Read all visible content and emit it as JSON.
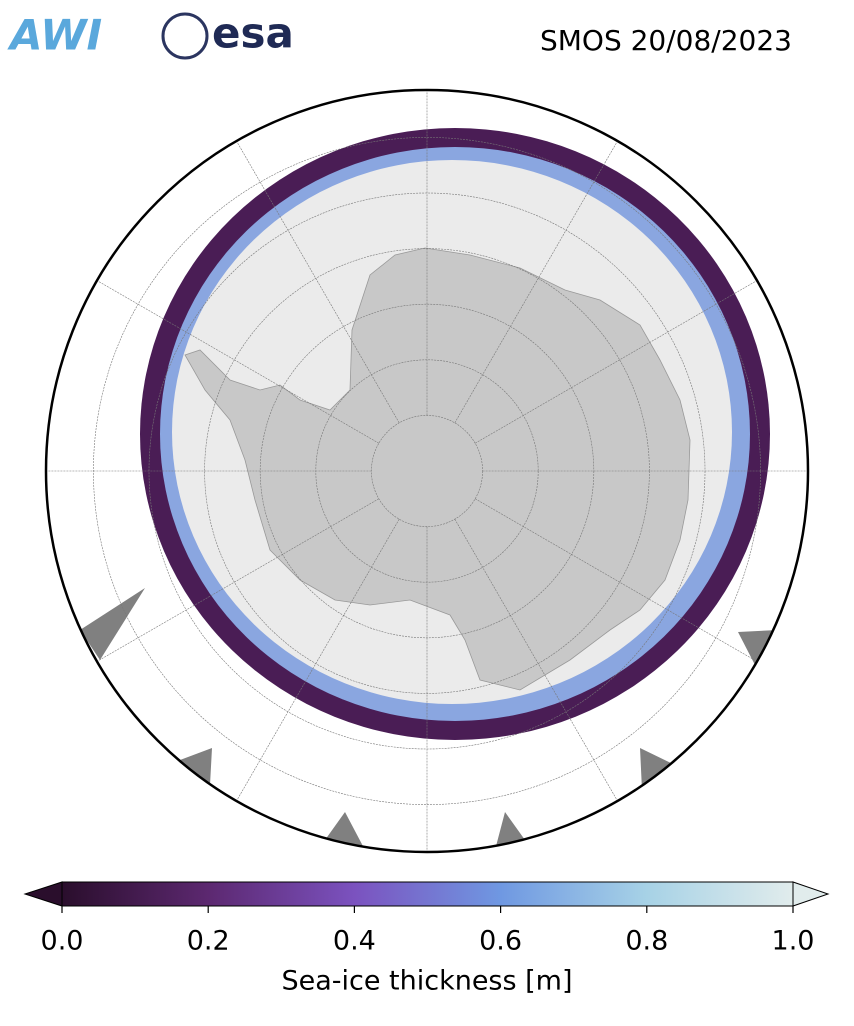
{
  "header": {
    "logo_left": "AWI",
    "logo_right": "esa",
    "title": "SMOS 20/08/2023"
  },
  "colorbar": {
    "label": "Sea-ice thickness [m]",
    "lim": [
      0,
      1
    ],
    "ticks": [
      {
        "value": 0,
        "label": "0.0"
      },
      {
        "value": 0.2,
        "label": "0.2"
      },
      {
        "value": 0.4,
        "label": "0.4"
      },
      {
        "value": 0.6,
        "label": "0.6"
      },
      {
        "value": 0.8,
        "label": "0.8"
      },
      {
        "value": 1,
        "label": "1.0"
      }
    ],
    "colors": [
      "#2a0e2c",
      "#5c2870",
      "#7b52bf",
      "#6f98e2",
      "#a7d2e6",
      "#e1ecec"
    ]
  }
}
